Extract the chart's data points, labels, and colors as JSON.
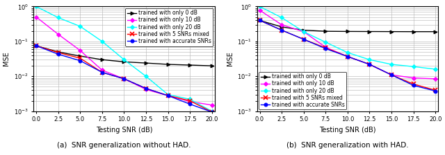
{
  "snr_points": [
    0.0,
    2.5,
    5.0,
    7.5,
    10.0,
    12.5,
    15.0,
    17.5,
    20.0
  ],
  "plot_a": {
    "caption": "(a)  SNR generalization without HAD.",
    "ylabel": "MSE",
    "xlabel": "Testing SNR (dB)",
    "legend_loc": "upper right",
    "series": [
      {
        "label": "trained with only 0 dB",
        "color": "black",
        "marker": ">",
        "values": [
          0.075,
          0.05,
          0.038,
          0.03,
          0.026,
          0.024,
          0.022,
          0.021,
          0.02
        ]
      },
      {
        "label": "trained with only 10 dB",
        "color": "magenta",
        "marker": "D",
        "values": [
          0.5,
          0.16,
          0.055,
          0.015,
          0.0085,
          0.0042,
          0.0028,
          0.0019,
          0.0015
        ]
      },
      {
        "label": "trained with only 20 dB",
        "color": "cyan",
        "marker": "D",
        "values": [
          1.0,
          0.48,
          0.27,
          0.1,
          0.03,
          0.01,
          0.003,
          0.0022,
          0.001
        ]
      },
      {
        "label": "trained with 5 SNRs mixed",
        "color": "red",
        "marker": "x",
        "values": [
          0.075,
          0.048,
          0.033,
          0.013,
          0.0085,
          0.0045,
          0.0028,
          0.002,
          0.00095
        ]
      },
      {
        "label": "trained with accurate SNRs",
        "color": "blue",
        "marker": "o",
        "values": [
          0.075,
          0.043,
          0.028,
          0.013,
          0.0085,
          0.0045,
          0.0028,
          0.0016,
          0.00095
        ]
      }
    ]
  },
  "plot_b": {
    "caption": "(b)  SNR generalization with HAD.",
    "ylabel": "MSE",
    "xlabel": "Testing SNR (dB)",
    "legend_loc": "lower left",
    "series": [
      {
        "label": "trained with only 0 dB",
        "color": "black",
        "marker": ">",
        "values": [
          0.4,
          0.26,
          0.21,
          0.195,
          0.193,
          0.192,
          0.191,
          0.19,
          0.19
        ]
      },
      {
        "label": "trained with only 10 dB",
        "color": "magenta",
        "marker": "D",
        "values": [
          0.78,
          0.3,
          0.19,
          0.068,
          0.037,
          0.022,
          0.011,
          0.009,
          0.0085
        ]
      },
      {
        "label": "trained with only 20 dB",
        "color": "cyan",
        "marker": "D",
        "values": [
          1.0,
          0.48,
          0.19,
          0.095,
          0.048,
          0.03,
          0.022,
          0.019,
          0.016
        ]
      },
      {
        "label": "trained with 5 SNRs mixed",
        "color": "red",
        "marker": "x",
        "values": [
          0.4,
          0.21,
          0.115,
          0.065,
          0.037,
          0.022,
          0.011,
          0.006,
          0.004
        ]
      },
      {
        "label": "trained with accurate SNRs",
        "color": "blue",
        "marker": "o",
        "values": [
          0.4,
          0.21,
          0.115,
          0.062,
          0.037,
          0.022,
          0.011,
          0.0055,
          0.0038
        ]
      }
    ]
  },
  "fig_width": 6.4,
  "fig_height": 2.24,
  "dpi": 100,
  "grid_color": "#b0b0b0",
  "grid_linewidth": 0.4,
  "tick_fontsize": 6,
  "label_fontsize": 7,
  "legend_fontsize": 5.5,
  "line_linewidth": 1.0,
  "marker_size": 3.5,
  "caption_fontsize": 7.5,
  "xticks": [
    0.0,
    2.5,
    5.0,
    7.5,
    10.0,
    12.5,
    15.0,
    17.5,
    20.0
  ],
  "xticklabels": [
    "0.0",
    "2.5",
    "5.0",
    "7.5",
    "10.0",
    "12.5",
    "15.0",
    "17.5",
    "20.0"
  ],
  "xlim": [
    -0.3,
    20.3
  ],
  "ylim": [
    0.001,
    1.0
  ]
}
